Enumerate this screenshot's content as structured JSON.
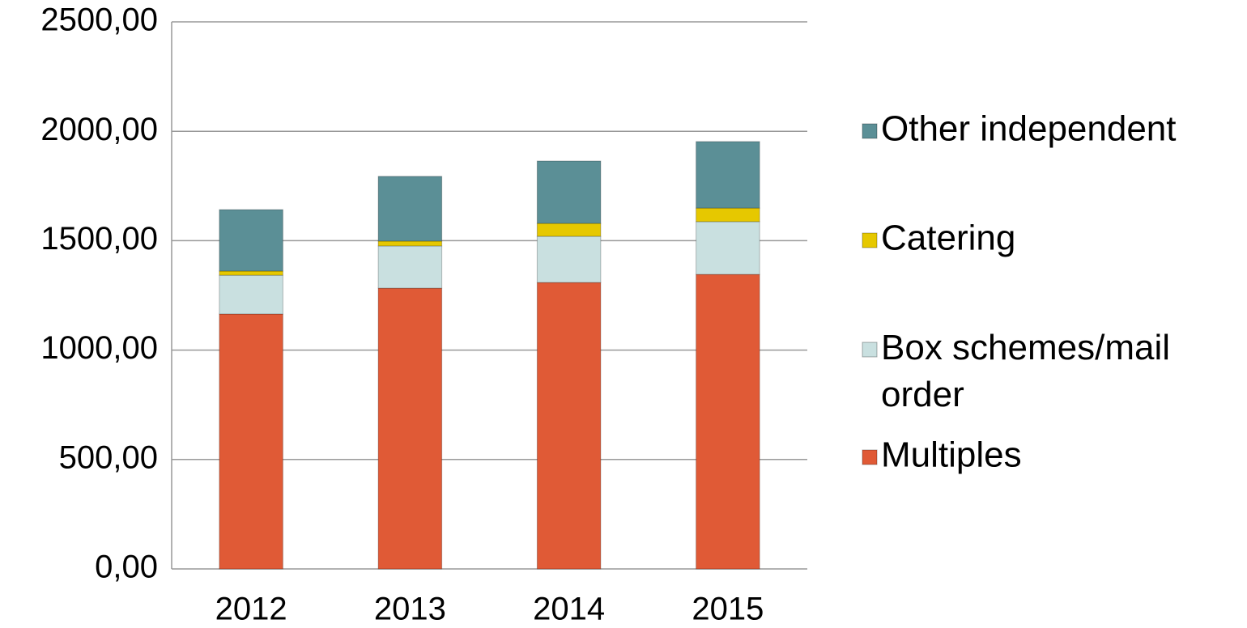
{
  "chart_data": {
    "type": "stacked_bar",
    "categories": [
      "2012",
      "2013",
      "2014",
      "2015"
    ],
    "series": [
      {
        "name": "Multiples",
        "color": "#e05a36",
        "values": [
          1165,
          1283,
          1309,
          1346
        ]
      },
      {
        "name": "Box schemes/mail order",
        "color": "#c9e0e0",
        "values": [
          177,
          193,
          211,
          241
        ]
      },
      {
        "name": "Catering",
        "color": "#e6c800",
        "values": [
          19,
          22,
          59,
          62
        ]
      },
      {
        "name": "Other independent",
        "color": "#5b8f96",
        "values": [
          281,
          296,
          285,
          304
        ]
      }
    ],
    "ylim": [
      0,
      2500
    ],
    "yticks": [
      {
        "value": 0,
        "label": "0,00"
      },
      {
        "value": 500,
        "label": "500,00"
      },
      {
        "value": 1000,
        "label": "1000,00"
      },
      {
        "value": 1500,
        "label": "1500,00"
      },
      {
        "value": 2000,
        "label": "2000,00"
      },
      {
        "value": 2500,
        "label": "2500,00"
      }
    ],
    "grid": true,
    "legend": "right"
  }
}
